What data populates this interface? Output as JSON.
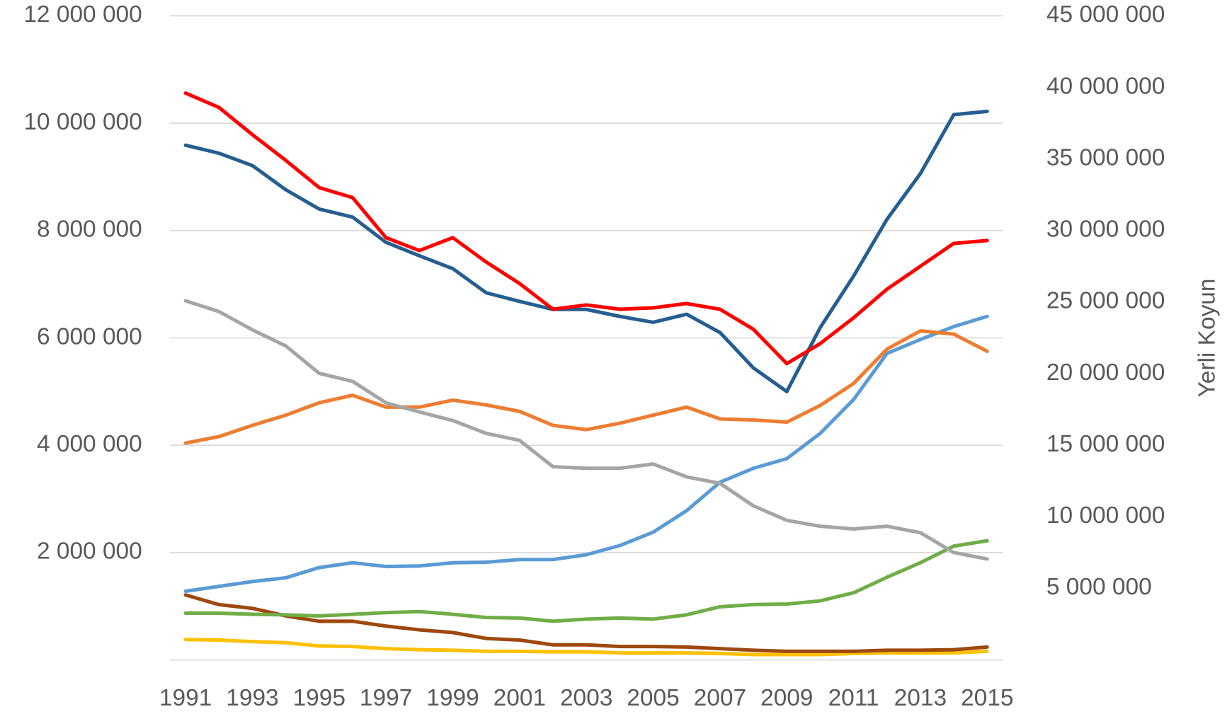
{
  "chart_data": {
    "type": "line",
    "x": [
      1991,
      1992,
      1993,
      1994,
      1995,
      1996,
      1997,
      1998,
      1999,
      2000,
      2001,
      2002,
      2003,
      2004,
      2005,
      2006,
      2007,
      2008,
      2009,
      2010,
      2011,
      2012,
      2013,
      2014,
      2015
    ],
    "xlim": [
      1991,
      2015
    ],
    "xticks": [
      1991,
      1993,
      1995,
      1997,
      1999,
      2001,
      2003,
      2005,
      2007,
      2009,
      2011,
      2013,
      2015
    ],
    "ylim": [
      0,
      12000000
    ],
    "yticks": [
      {
        "value": 2000000,
        "label": "2 000 000"
      },
      {
        "value": 4000000,
        "label": "4 000 000"
      },
      {
        "value": 6000000,
        "label": "6 000 000"
      },
      {
        "value": 8000000,
        "label": "8 000 000"
      },
      {
        "value": 10000000,
        "label": "10 000 000"
      },
      {
        "value": 12000000,
        "label": "12 000 000"
      }
    ],
    "y2lim": [
      0,
      45000000
    ],
    "y2ticks": [
      {
        "value": 5000000,
        "label": "5 000 000"
      },
      {
        "value": 10000000,
        "label": "10 000 000"
      },
      {
        "value": 15000000,
        "label": "15 000 000"
      },
      {
        "value": 20000000,
        "label": "20 000 000"
      },
      {
        "value": 25000000,
        "label": "25 000 000"
      },
      {
        "value": 30000000,
        "label": "30 000 000"
      },
      {
        "value": 35000000,
        "label": "35 000 000"
      },
      {
        "value": 40000000,
        "label": "40 000 000"
      },
      {
        "value": 45000000,
        "label": "45 000 000"
      }
    ],
    "y2label": "Yerli Koyun",
    "grid": true,
    "series": [
      {
        "color": "#ffc000",
        "values": [
          380000,
          370000,
          340000,
          320000,
          260000,
          250000,
          210000,
          190000,
          180000,
          160000,
          160000,
          150000,
          150000,
          130000,
          130000,
          130000,
          120000,
          100000,
          100000,
          100000,
          120000,
          130000,
          130000,
          130000,
          160000
        ]
      },
      {
        "color": "#9e480e",
        "values": [
          1210000,
          1030000,
          960000,
          820000,
          720000,
          720000,
          630000,
          560000,
          510000,
          400000,
          370000,
          280000,
          280000,
          250000,
          250000,
          240000,
          210000,
          180000,
          160000,
          160000,
          160000,
          180000,
          180000,
          190000,
          240000
        ]
      },
      {
        "color": "#70ad47",
        "values": [
          870000,
          870000,
          850000,
          840000,
          820000,
          850000,
          880000,
          900000,
          850000,
          790000,
          780000,
          720000,
          760000,
          780000,
          760000,
          840000,
          990000,
          1030000,
          1040000,
          1100000,
          1250000,
          1540000,
          1810000,
          2120000,
          2220000
        ]
      },
      {
        "color": "#5b9bd5",
        "values": [
          1280000,
          1370000,
          1460000,
          1530000,
          1720000,
          1810000,
          1740000,
          1750000,
          1810000,
          1820000,
          1870000,
          1870000,
          1960000,
          2130000,
          2380000,
          2780000,
          3310000,
          3570000,
          3750000,
          4220000,
          4850000,
          5710000,
          5970000,
          6210000,
          6400000
        ]
      },
      {
        "color": "#ed7d31",
        "values": [
          4040000,
          4160000,
          4370000,
          4560000,
          4790000,
          4930000,
          4710000,
          4710000,
          4840000,
          4750000,
          4630000,
          4370000,
          4290000,
          4410000,
          4560000,
          4710000,
          4490000,
          4470000,
          4430000,
          4740000,
          5150000,
          5790000,
          6130000,
          6070000,
          5750000
        ]
      },
      {
        "color": "#a5a5a5",
        "values": [
          6690000,
          6490000,
          6150000,
          5850000,
          5340000,
          5190000,
          4790000,
          4620000,
          4460000,
          4220000,
          4090000,
          3600000,
          3570000,
          3570000,
          3650000,
          3410000,
          3290000,
          2870000,
          2600000,
          2490000,
          2440000,
          2490000,
          2370000,
          2000000,
          1880000
        ]
      },
      {
        "color": "#255e91",
        "values": [
          9590000,
          9440000,
          9210000,
          8760000,
          8400000,
          8250000,
          7780000,
          7530000,
          7290000,
          6840000,
          6680000,
          6530000,
          6530000,
          6400000,
          6290000,
          6440000,
          6100000,
          5440000,
          5000000,
          6190000,
          7150000,
          8210000,
          9060000,
          10160000,
          10220000
        ]
      },
      {
        "color": "#ff0000",
        "axis": "y2",
        "values": [
          39600000,
          38600000,
          36700000,
          34900000,
          33000000,
          32300000,
          29500000,
          28600000,
          29500000,
          27800000,
          26300000,
          24500000,
          24800000,
          24500000,
          24600000,
          24900000,
          24500000,
          23100000,
          20700000,
          22100000,
          23900000,
          25900000,
          27500000,
          29100000,
          29300000
        ]
      }
    ]
  }
}
